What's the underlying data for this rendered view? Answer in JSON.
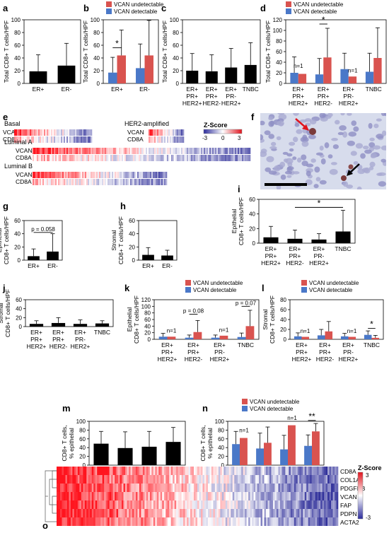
{
  "panel_letters": {
    "a": "a",
    "b": "b",
    "c": "c",
    "d": "d",
    "e": "e",
    "f": "f",
    "g": "g",
    "h": "h",
    "i": "i",
    "j": "j",
    "k": "k",
    "l": "l",
    "m": "m",
    "n": "n",
    "o": "o"
  },
  "colors": {
    "black": "#000000",
    "undetectable": "#d9534f",
    "detectable": "#4a78c8",
    "zlow": "#2c2c9c",
    "zhigh": "#e0141e"
  },
  "chart_data": [
    {
      "panel": "a",
      "type": "bar",
      "ylabel": "Total CD8+ T cells/HPF",
      "ylim": [
        0,
        100
      ],
      "yticks": [
        0,
        20,
        40,
        60,
        80,
        100
      ],
      "categories": [
        "ER+",
        "ER-"
      ],
      "series": [
        {
          "values": [
            19,
            28
          ],
          "err": [
            26,
            35
          ],
          "color": "black"
        }
      ]
    },
    {
      "panel": "b",
      "type": "bar",
      "ylabel": "Total CD8+ T cells/HPF",
      "ylim": [
        0,
        100
      ],
      "yticks": [
        0,
        20,
        40,
        60,
        80,
        100
      ],
      "legend": [
        "VCAN undetectable",
        "VCAN detectable"
      ],
      "categories": [
        "ER+",
        "ER-"
      ],
      "series": [
        {
          "name": "VCAN detectable",
          "values": [
            17,
            24
          ],
          "err": [
            24,
            38
          ],
          "color": "detectable"
        },
        {
          "name": "VCAN undetectable",
          "values": [
            44,
            44
          ],
          "err": [
            40,
            55
          ],
          "color": "undetectable"
        }
      ],
      "annotations": [
        {
          "text": "*",
          "group": 0
        }
      ]
    },
    {
      "panel": "c",
      "type": "bar",
      "ylabel": "Total CD8+ T cells/HPF",
      "ylim": [
        0,
        100
      ],
      "yticks": [
        0,
        20,
        40,
        60,
        80,
        100
      ],
      "categories": [
        "ER+\nPR+\nHER2+",
        "ER+\nPR+\nHER2-",
        "ER+\nPR-\nHER2+",
        "TNBC"
      ],
      "series": [
        {
          "values": [
            20,
            19,
            25,
            29
          ],
          "err": [
            27,
            26,
            30,
            35
          ],
          "color": "black"
        }
      ]
    },
    {
      "panel": "d",
      "type": "bar",
      "ylabel": "Total CD8+ T cells/HPF",
      "ylim": [
        0,
        120
      ],
      "yticks": [
        0,
        20,
        40,
        60,
        80,
        100,
        120
      ],
      "legend": [
        "VCAN undetectable",
        "VCAN detectable"
      ],
      "categories": [
        "ER+\nPR+\nHER2+",
        "ER+\nPR+\nHER2-",
        "ER+\nPR-\nHER2+",
        "TNBC"
      ],
      "series": [
        {
          "name": "VCAN detectable",
          "values": [
            20,
            17,
            27,
            22
          ],
          "err": [
            30,
            30,
            30,
            35
          ],
          "color": "detectable"
        },
        {
          "name": "VCAN undetectable",
          "values": [
            18,
            49,
            13,
            48
          ],
          "err": [
            0,
            55,
            0,
            57
          ],
          "color": "undetectable"
        }
      ],
      "annotations": [
        {
          "text": "n=1",
          "group": 0
        },
        {
          "text": "*",
          "group": 1
        },
        {
          "text": "n=1",
          "group": 2
        }
      ]
    },
    {
      "panel": "g",
      "type": "bar",
      "ylabel": "Epithelial\nCD8+ T cells/HPF",
      "ylim": [
        0,
        60
      ],
      "yticks": [
        0,
        20,
        40,
        60
      ],
      "categories": [
        "ER+",
        "ER-"
      ],
      "series": [
        {
          "values": [
            6,
            13
          ],
          "err": [
            11,
            27
          ],
          "color": "black"
        }
      ],
      "annotations": [
        {
          "text": "p = 0.058"
        }
      ]
    },
    {
      "panel": "h",
      "type": "bar",
      "ylabel": "Stromal\nCD8+ T cells/HPF",
      "ylim": [
        0,
        60
      ],
      "yticks": [
        0,
        20,
        40,
        60
      ],
      "categories": [
        "ER+",
        "ER-"
      ],
      "series": [
        {
          "values": [
            8,
            7
          ],
          "err": [
            11,
            8
          ],
          "color": "black"
        }
      ]
    },
    {
      "panel": "i",
      "type": "bar",
      "ylabel": "Epithelial\nCD8+ T cells/HPF",
      "ylim": [
        0,
        60
      ],
      "yticks": [
        0,
        20,
        40,
        60
      ],
      "categories": [
        "ER+\nPR+\nHER2+",
        "ER+\nPR+\nHER2-",
        "ER+\nPR-\nHER2+",
        "TNBC"
      ],
      "series": [
        {
          "values": [
            8,
            6,
            5,
            16
          ],
          "err": [
            15,
            12,
            8,
            29
          ],
          "color": "black"
        }
      ],
      "annotations": [
        {
          "text": "*"
        }
      ]
    },
    {
      "panel": "j",
      "type": "bar",
      "ylabel": "Stromal\nCD8+ T cells/HPF",
      "ylim": [
        0,
        60
      ],
      "yticks": [
        0,
        20,
        40,
        60
      ],
      "categories": [
        "ER+\nPR+\nHER2+",
        "ER+\nPR+\nHER2-",
        "ER+\nPR-\nHER2+",
        "TNBC"
      ],
      "series": [
        {
          "values": [
            6,
            8,
            6,
            7
          ],
          "err": [
            7,
            12,
            9,
            6
          ],
          "color": "black"
        }
      ]
    },
    {
      "panel": "k",
      "type": "bar",
      "ylabel": "Epithelial\nCD8+ T cells/HPF",
      "ylim": [
        0,
        120
      ],
      "yticks": [
        0,
        20,
        40,
        60,
        80,
        100,
        120
      ],
      "legend": [
        "VCAN undetectable",
        "VCAN detectable"
      ],
      "categories": [
        "ER+\nPR+\nHER2+",
        "ER+\nPR+\nHER2-",
        "ER+\nPR-\nHER2+",
        "TNBC"
      ],
      "series": [
        {
          "name": "VCAN detectable",
          "values": [
            8,
            5,
            5,
            7
          ],
          "err": [
            10,
            8,
            8,
            12
          ],
          "color": "detectable"
        },
        {
          "name": "VCAN undetectable",
          "values": [
            8,
            22,
            11,
            40
          ],
          "err": [
            0,
            35,
            0,
            48
          ],
          "color": "undetectable"
        }
      ],
      "annotations": [
        {
          "text": "n=1",
          "group": 0
        },
        {
          "text": "p = 0.08",
          "group": 1
        },
        {
          "text": "n=1",
          "group": 2
        },
        {
          "text": "p = 0.07",
          "group": 3
        }
      ]
    },
    {
      "panel": "l",
      "type": "bar",
      "ylabel": "Stromal\nCD8+ T cells/HPF",
      "ylim": [
        0,
        80
      ],
      "yticks": [
        0,
        20,
        40,
        60,
        80
      ],
      "legend": [
        "VCAN undetectable",
        "VCAN detectable"
      ],
      "categories": [
        "ER+\nPR+\nHER2+",
        "ER+\nPR+\nHER2-",
        "ER+\nPR-\nHER2+",
        "TNBC"
      ],
      "series": [
        {
          "name": "VCAN detectable",
          "values": [
            6,
            8,
            6,
            9
          ],
          "err": [
            7,
            12,
            6,
            8
          ],
          "color": "detectable"
        },
        {
          "name": "VCAN undetectable",
          "values": [
            5,
            16,
            5,
            3
          ],
          "err": [
            0,
            20,
            0,
            5
          ],
          "color": "undetectable"
        }
      ],
      "annotations": [
        {
          "text": "n=1",
          "group": 0
        },
        {
          "text": "n=1",
          "group": 2
        },
        {
          "text": "*",
          "group": 3
        }
      ]
    },
    {
      "panel": "m",
      "type": "bar",
      "ylabel": "CD8+ T cells,\n% epithelial",
      "ylim": [
        0,
        100
      ],
      "yticks": [
        0,
        20,
        40,
        60,
        80,
        100
      ],
      "categories": [
        "ER+\nPR+\nHER2+",
        "ER+\nPR+\nHER2-",
        "ER+\nPR-\nHER2+",
        "TNBC"
      ],
      "series": [
        {
          "values": [
            49,
            39,
            42,
            53
          ],
          "err": [
            28,
            37,
            35,
            33
          ],
          "color": "black"
        }
      ]
    },
    {
      "panel": "n",
      "type": "bar",
      "ylabel": "CD8+ T cells,\n% epithelial",
      "ylim": [
        0,
        100
      ],
      "yticks": [
        0,
        20,
        40,
        60,
        80,
        100
      ],
      "legend": [
        "VCAN undetectable",
        "VCAN detectable"
      ],
      "categories": [
        "ER+\nPR+\nHER2+",
        "ER+\nPR+\nHER2-",
        "ER+\nPR-\nHER2+",
        "TNBC"
      ],
      "series": [
        {
          "name": "VCAN detectable",
          "values": [
            48,
            38,
            36,
            44
          ],
          "err": [
            29,
            35,
            32,
            25
          ],
          "color": "detectable"
        },
        {
          "name": "VCAN undetectable",
          "values": [
            62,
            51,
            91,
            77
          ],
          "err": [
            0,
            36,
            0,
            18
          ],
          "color": "undetectable"
        }
      ],
      "annotations": [
        {
          "text": "n=1",
          "group": 0
        },
        {
          "text": "n=1",
          "group": 2
        },
        {
          "text": "**",
          "group": 3
        }
      ]
    },
    {
      "panel": "e",
      "type": "heatmap",
      "colorbar_title": "Z-Score",
      "colorbar_ticks": [
        "-3",
        "0",
        "3"
      ],
      "groups": [
        {
          "name": "Basal",
          "rows": [
            "VCAN",
            "CD8A"
          ]
        },
        {
          "name": "HER2-amplified",
          "rows": [
            "VCAN",
            "CD8A"
          ]
        },
        {
          "name": "Luminal A",
          "rows": [
            "VCAN",
            "CD8A"
          ]
        },
        {
          "name": "Luminal B",
          "rows": [
            "VCAN",
            "CD8A"
          ]
        }
      ]
    },
    {
      "panel": "o",
      "type": "heatmap",
      "colorbar_title": "Z-Score",
      "colorbar_ticks": [
        "3",
        "-3"
      ],
      "rows": [
        "CD8A",
        "COL1A1",
        "PDGFRB",
        "VCAN",
        "FAP",
        "PDPN",
        "ACTA2"
      ]
    }
  ]
}
